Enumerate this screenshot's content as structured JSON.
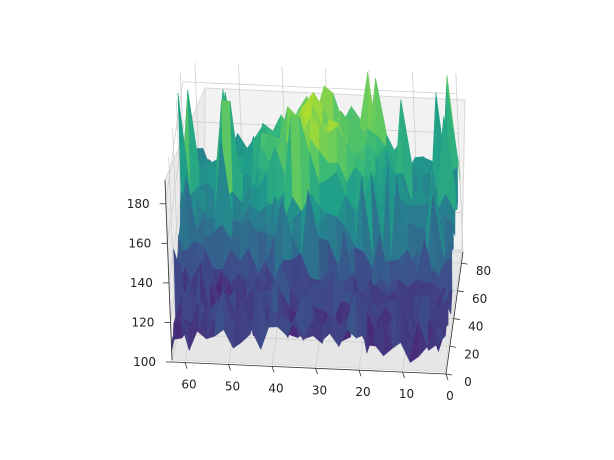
{
  "chart_data": {
    "type": "surface",
    "colormap": "viridis",
    "grid": true,
    "x_ticks": [
      0,
      10,
      20,
      30,
      40,
      50,
      60
    ],
    "y_ticks": [
      0,
      20,
      40,
      60,
      80
    ],
    "z_ticks": [
      100,
      120,
      140,
      160,
      180
    ],
    "xlim": [
      0,
      63
    ],
    "ylim": [
      0,
      88
    ],
    "zlim": [
      100,
      190
    ],
    "surface_summary": {
      "min_height": 102,
      "max_height": 189,
      "front_band_height_range": [
        105,
        130
      ],
      "rear_plateau_height_range": [
        165,
        189
      ]
    }
  }
}
